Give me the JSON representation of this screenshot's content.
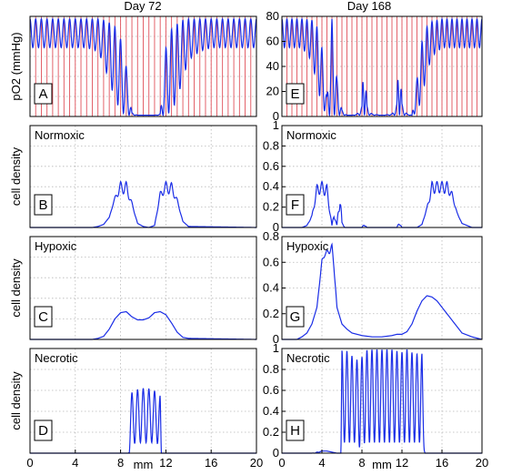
{
  "chart_data": {
    "type": "line",
    "columns": [
      {
        "title": "Day 72",
        "x_ticks": [
          "0",
          "4",
          "8",
          "12",
          "16",
          "20"
        ],
        "x_unit": "mm",
        "xlim": [
          0,
          20
        ]
      },
      {
        "title": "Day 168",
        "x_ticks": [
          "0",
          "4",
          "8",
          "12",
          "16",
          "20"
        ],
        "x_unit": "mm",
        "xlim": [
          0,
          20
        ]
      }
    ],
    "row_ylabels": [
      "pO2 (mmHg)",
      "cell density",
      "cell density",
      "cell density"
    ],
    "panels": [
      {
        "letter": "A",
        "title": "",
        "ylim": [
          0,
          80
        ],
        "y_ticks": [],
        "vessel_lines": true,
        "x": [
          0,
          1,
          2,
          3,
          4,
          5,
          6,
          6.5,
          7,
          7.5,
          8,
          8.5,
          9,
          9.5,
          10,
          10.5,
          11,
          11.5,
          12,
          12.5,
          13,
          13.5,
          14,
          15,
          16,
          17,
          18,
          19,
          20
        ],
        "upper": [
          78,
          78,
          78,
          78,
          78,
          78,
          78,
          77,
          75,
          72,
          62,
          40,
          3,
          1,
          1,
          1,
          1,
          2,
          55,
          70,
          74,
          77,
          78,
          78,
          78,
          78,
          78,
          78,
          78
        ],
        "lower": [
          55,
          55,
          55,
          55,
          55,
          55,
          52,
          42,
          28,
          14,
          4,
          1,
          1,
          1,
          1,
          1,
          1,
          1,
          1,
          4,
          14,
          30,
          45,
          52,
          55,
          55,
          55,
          55,
          55
        ]
      },
      {
        "letter": "E",
        "title": "",
        "ylim": [
          0,
          80
        ],
        "y_ticks": [
          "0",
          "20",
          "40",
          "60",
          "80"
        ],
        "vessel_lines": true,
        "x": [
          0,
          1,
          2,
          3,
          3.5,
          4,
          4.5,
          5,
          5.5,
          6,
          6.5,
          7,
          7.5,
          8,
          8.2,
          8.5,
          9,
          10,
          11,
          11.5,
          11.7,
          12,
          12.5,
          13,
          13.5,
          14,
          14.5,
          15,
          16,
          17,
          18,
          19,
          20
        ],
        "upper": [
          78,
          78,
          78,
          77,
          72,
          55,
          15,
          78,
          30,
          5,
          1,
          1,
          2,
          8,
          75,
          8,
          2,
          1,
          2,
          10,
          78,
          10,
          2,
          1,
          30,
          60,
          72,
          76,
          78,
          78,
          78,
          78,
          78
        ],
        "lower": [
          55,
          55,
          55,
          44,
          25,
          8,
          1,
          1,
          1,
          1,
          1,
          1,
          1,
          1,
          1,
          1,
          1,
          1,
          1,
          1,
          1,
          1,
          1,
          1,
          3,
          15,
          35,
          48,
          55,
          55,
          55,
          55,
          55
        ]
      },
      {
        "letter": "B",
        "title": "Normoxic",
        "ylim": [
          0,
          1
        ],
        "y_ticks": [],
        "x": [
          0,
          5.5,
          6,
          6.5,
          7,
          7.5,
          8,
          8.5,
          9,
          9.5,
          10,
          10.5,
          11,
          11.5,
          12,
          12.5,
          13,
          13.5,
          14,
          20
        ],
        "upper": [
          0,
          0,
          0.01,
          0.03,
          0.1,
          0.3,
          0.45,
          0.45,
          0.25,
          0.04,
          0.01,
          0,
          0.02,
          0.35,
          0.45,
          0.44,
          0.28,
          0.06,
          0.01,
          0
        ],
        "lower": [
          0,
          0,
          0.01,
          0.03,
          0.1,
          0.28,
          0.33,
          0.33,
          0.22,
          0.04,
          0.01,
          0,
          0.02,
          0.3,
          0.33,
          0.33,
          0.25,
          0.06,
          0.01,
          0
        ]
      },
      {
        "letter": "F",
        "title": "Normoxic",
        "ylim": [
          0,
          1
        ],
        "y_ticks": [
          "0",
          "0.2",
          "0.4",
          "0.6",
          "0.8",
          "1"
        ],
        "x": [
          0,
          2,
          2.5,
          3,
          3.5,
          4,
          4.5,
          5,
          5.2,
          5.5,
          5.8,
          6,
          6.3,
          7,
          8,
          8.2,
          8.5,
          9,
          11.5,
          11.7,
          12,
          13,
          13.5,
          14,
          14.5,
          15,
          15.5,
          16,
          16.5,
          17,
          17.5,
          18,
          19,
          20
        ],
        "upper": [
          0,
          0,
          0.02,
          0.12,
          0.42,
          0.45,
          0.42,
          0.02,
          0.15,
          0.02,
          0.45,
          0.05,
          0,
          0,
          0,
          0.04,
          0,
          0,
          0,
          0.06,
          0,
          0,
          0,
          0.03,
          0.2,
          0.45,
          0.45,
          0.45,
          0.45,
          0.35,
          0.15,
          0.04,
          0,
          0
        ],
        "lower": [
          0,
          0,
          0.02,
          0.1,
          0.32,
          0.33,
          0.3,
          0.02,
          0.1,
          0.02,
          0.2,
          0.03,
          0,
          0,
          0,
          0.02,
          0,
          0,
          0,
          0.03,
          0,
          0,
          0,
          0.03,
          0.18,
          0.33,
          0.34,
          0.34,
          0.33,
          0.3,
          0.14,
          0.04,
          0,
          0
        ]
      },
      {
        "letter": "C",
        "title": "Hypoxic",
        "ylim": [
          0,
          1
        ],
        "y_ticks": [],
        "x": [
          0,
          5.5,
          6,
          6.5,
          7,
          7.5,
          8,
          8.5,
          9,
          9.5,
          10,
          10.5,
          11,
          11.5,
          12,
          12.5,
          13,
          13.5,
          14,
          20
        ],
        "upper": [
          0,
          0,
          0.01,
          0.03,
          0.1,
          0.2,
          0.26,
          0.27,
          0.22,
          0.19,
          0.19,
          0.21,
          0.26,
          0.27,
          0.24,
          0.16,
          0.07,
          0.02,
          0.01,
          0
        ],
        "lower": [
          0,
          0,
          0.01,
          0.03,
          0.1,
          0.2,
          0.26,
          0.27,
          0.22,
          0.19,
          0.19,
          0.21,
          0.26,
          0.27,
          0.24,
          0.16,
          0.07,
          0.02,
          0.01,
          0
        ]
      },
      {
        "letter": "G",
        "title": "Hypoxic",
        "ylim": [
          0,
          0.8
        ],
        "y_ticks": [
          "0",
          "0.2",
          "0.4",
          "0.6",
          "0.8"
        ],
        "x": [
          0,
          1.5,
          2,
          2.5,
          3,
          3.5,
          4,
          4.3,
          4.6,
          5,
          5.2,
          5.5,
          6,
          6.5,
          7,
          8,
          9,
          10,
          11,
          11.5,
          12,
          12.5,
          13,
          13.5,
          14,
          14.5,
          15,
          15.5,
          16,
          16.5,
          17,
          17.5,
          18,
          19,
          20
        ],
        "upper": [
          0,
          0,
          0.02,
          0.05,
          0.12,
          0.25,
          0.62,
          0.68,
          0.7,
          0.74,
          0.6,
          0.25,
          0.12,
          0.08,
          0.05,
          0.03,
          0.02,
          0.02,
          0.03,
          0.04,
          0.04,
          0.06,
          0.12,
          0.22,
          0.3,
          0.34,
          0.33,
          0.3,
          0.25,
          0.2,
          0.15,
          0.1,
          0.05,
          0.02,
          0
        ],
        "lower": [
          0,
          0,
          0.02,
          0.05,
          0.12,
          0.25,
          0.6,
          0.65,
          0.66,
          0.68,
          0.55,
          0.25,
          0.12,
          0.08,
          0.05,
          0.03,
          0.02,
          0.02,
          0.03,
          0.04,
          0.04,
          0.06,
          0.12,
          0.22,
          0.3,
          0.34,
          0.33,
          0.3,
          0.25,
          0.2,
          0.15,
          0.1,
          0.05,
          0.02,
          0
        ]
      },
      {
        "letter": "D",
        "title": "Necrotic",
        "ylim": [
          0,
          1
        ],
        "y_ticks": [],
        "x": [
          0,
          8.7,
          8.8,
          9,
          9.3,
          9.6,
          10,
          10.4,
          10.8,
          11.2,
          11.5,
          11.6,
          20
        ],
        "upper": [
          0,
          0,
          0.5,
          0.58,
          0.6,
          0.61,
          0.62,
          0.62,
          0.6,
          0.59,
          0.55,
          0,
          0
        ],
        "lower": [
          0,
          0,
          0,
          0.05,
          0.1,
          0.1,
          0.1,
          0.1,
          0.1,
          0.1,
          0.05,
          0,
          0
        ]
      },
      {
        "letter": "H",
        "title": "Necrotic",
        "ylim": [
          0,
          1
        ],
        "y_ticks": [
          "0",
          "0.2",
          "0.4",
          "0.6",
          "0.8",
          "1"
        ],
        "x": [
          0,
          3,
          3.5,
          4,
          4.5,
          5,
          5.5,
          5.9,
          6,
          6.3,
          6.8,
          7.3,
          7.8,
          8.3,
          8.8,
          9.3,
          9.8,
          10.3,
          10.8,
          11.3,
          11.8,
          12.3,
          12.8,
          13.3,
          13.8,
          14,
          14.3,
          20
        ],
        "upper": [
          0,
          0,
          0.01,
          0.02,
          0.02,
          0.01,
          0,
          0,
          0.98,
          0.99,
          0.95,
          0.9,
          0.88,
          0.98,
          0.99,
          0.99,
          0.99,
          0.99,
          0.99,
          0.99,
          0.95,
          0.99,
          0.99,
          0.92,
          0.99,
          0.95,
          0,
          0
        ],
        "lower": [
          0,
          0,
          0,
          0.02,
          0.02,
          0.01,
          0,
          0,
          0.1,
          0.1,
          0.1,
          0.1,
          0.05,
          0.1,
          0.1,
          0.1,
          0.1,
          0.1,
          0.1,
          0.1,
          0.1,
          0.1,
          0.1,
          0.1,
          0.1,
          0.1,
          0,
          0
        ]
      }
    ],
    "colors": {
      "line": "#1a2de6",
      "vessel": "#e0505a",
      "grid": "#b8b8b8",
      "axis": "#000000"
    },
    "grid": true
  }
}
